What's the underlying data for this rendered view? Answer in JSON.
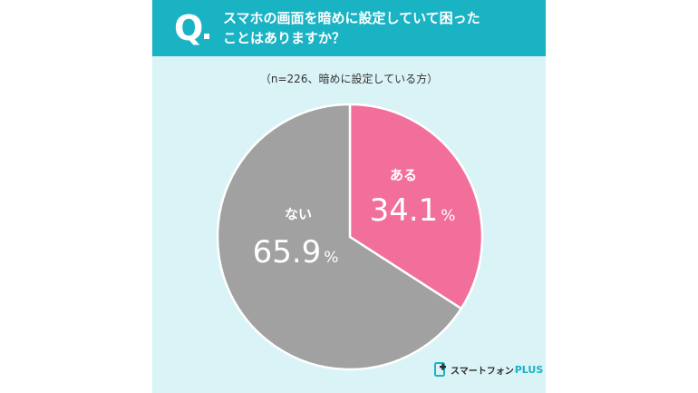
{
  "header": {
    "q_mark": "Q",
    "question_line1": "スマホの画面を暗めに設定していて困った",
    "question_line2": "ことはありますか？"
  },
  "sample_note": "（n=226、暗めに設定している方）",
  "chart_data": {
    "type": "pie",
    "slices": [
      {
        "label": "ある",
        "value": 34.1,
        "value_text": "34.1",
        "unit": "%",
        "color": "#f26f9b"
      },
      {
        "label": "ない",
        "value": 65.9,
        "value_text": "65.9",
        "unit": "%",
        "color": "#a1a1a1"
      }
    ],
    "start_angle": "12 o'clock",
    "direction": "clockwise"
  },
  "brand": {
    "name": "スマートフォン",
    "plus": "PLUS",
    "icon": "smartphone-plus-logo-icon"
  },
  "colors": {
    "header": "#1ab3c4",
    "background": "#daf3f7"
  }
}
